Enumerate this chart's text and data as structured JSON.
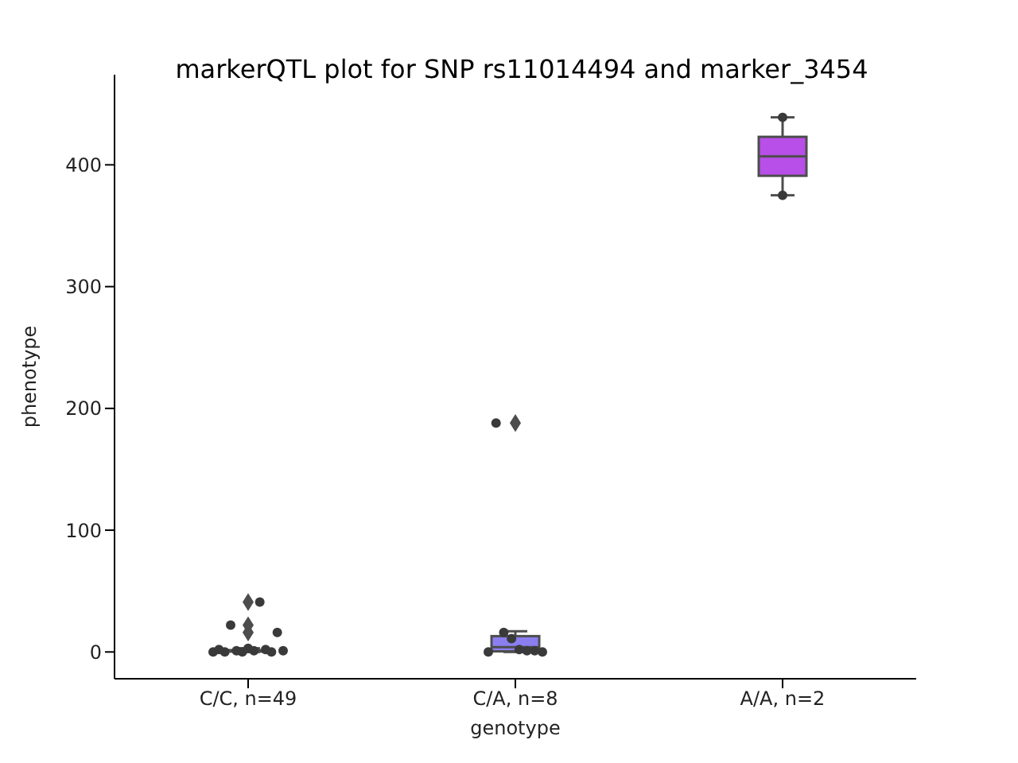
{
  "chart_data": {
    "type": "box",
    "title": "markerQTL plot for SNP rs11014494 and marker_3454",
    "xlabel": "genotype",
    "ylabel": "phenotype",
    "categories": [
      "C/C, n=49",
      "C/A, n=8",
      "A/A, n=2"
    ],
    "colors": [
      "#6495ed",
      "#8b7ff0",
      "#b84fe8"
    ],
    "boxes": [
      {
        "low": 0,
        "q1": 0.3,
        "median": 0.8,
        "q3": 1.5,
        "high": 3,
        "outliers": [
          16,
          22,
          41
        ]
      },
      {
        "low": 0,
        "q1": 0.5,
        "median": 4,
        "q3": 13,
        "high": 17,
        "outliers": [
          188
        ]
      },
      {
        "low": 375,
        "q1": 391,
        "median": 407,
        "q3": 423,
        "high": 439
      }
    ],
    "series": [
      {
        "type": "scatter",
        "color": "#3a3a3a",
        "marker": "circle",
        "x": [
          "C/C, n=49",
          "C/C, n=49",
          "C/C, n=49",
          "C/C, n=49",
          "C/C, n=49",
          "C/C, n=49",
          "C/C, n=49",
          "C/C, n=49",
          "C/C, n=49",
          "C/C, n=49",
          "C/C, n=49",
          "C/C, n=49",
          "C/C, n=49",
          "C/A, n=8",
          "C/A, n=8",
          "C/A, n=8",
          "C/A, n=8",
          "C/A, n=8",
          "C/A, n=8",
          "C/A, n=8",
          "C/A, n=8",
          "A/A, n=2",
          "A/A, n=2"
        ],
        "values": [
          0,
          0,
          0,
          0,
          1,
          1,
          1,
          2,
          2,
          3,
          16,
          22,
          41,
          0,
          0,
          1,
          1,
          2,
          11,
          16,
          188,
          375,
          439
        ]
      }
    ],
    "ylim": [
      -22,
      474
    ],
    "yticks": [
      0,
      100,
      200,
      300,
      400
    ]
  }
}
